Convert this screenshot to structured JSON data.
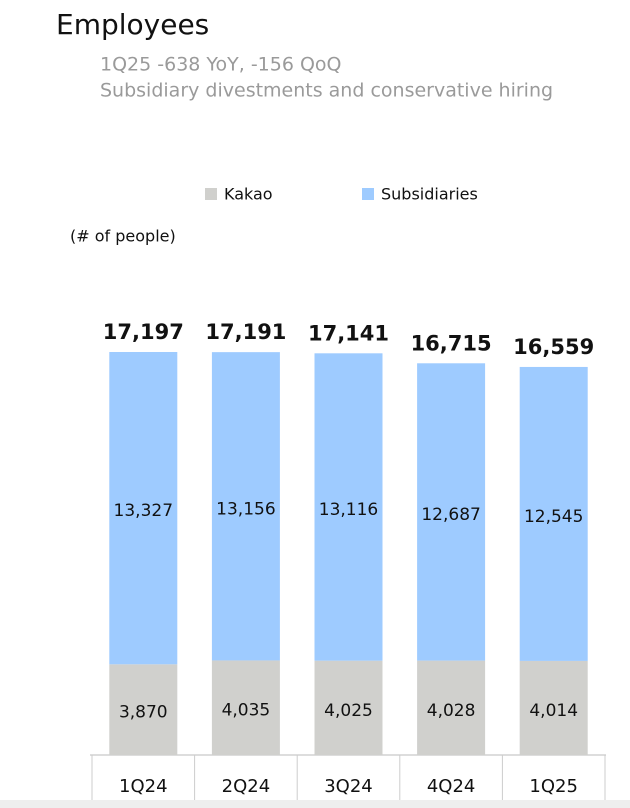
{
  "chart_data": {
    "type": "stacked_bar",
    "title": "Employees",
    "subtitle": "1Q25 -638 YoY, -156 QoQ",
    "note": "Subsidiary divestments and conservative hiring",
    "unit_label": "(# of people)",
    "categories": [
      "1Q24",
      "2Q24",
      "3Q24",
      "4Q24",
      "1Q25"
    ],
    "series": [
      {
        "name": "Kakao",
        "color": "#d0d0cd",
        "values": [
          3870,
          4035,
          4025,
          4028,
          4014
        ],
        "value_labels": [
          "3,870",
          "4,035",
          "4,025",
          "4,028",
          "4,014"
        ]
      },
      {
        "name": "Subsidiaries",
        "color": "#9ecbff",
        "values": [
          13327,
          13156,
          13116,
          12687,
          12545
        ],
        "value_labels": [
          "13,327",
          "13,156",
          "13,116",
          "12,687",
          "12,545"
        ]
      }
    ],
    "totals": {
      "values": [
        17197,
        17191,
        17141,
        16715,
        16559
      ],
      "value_labels": [
        "17,197",
        "17,191",
        "17,141",
        "16,715",
        "16,559"
      ]
    }
  }
}
